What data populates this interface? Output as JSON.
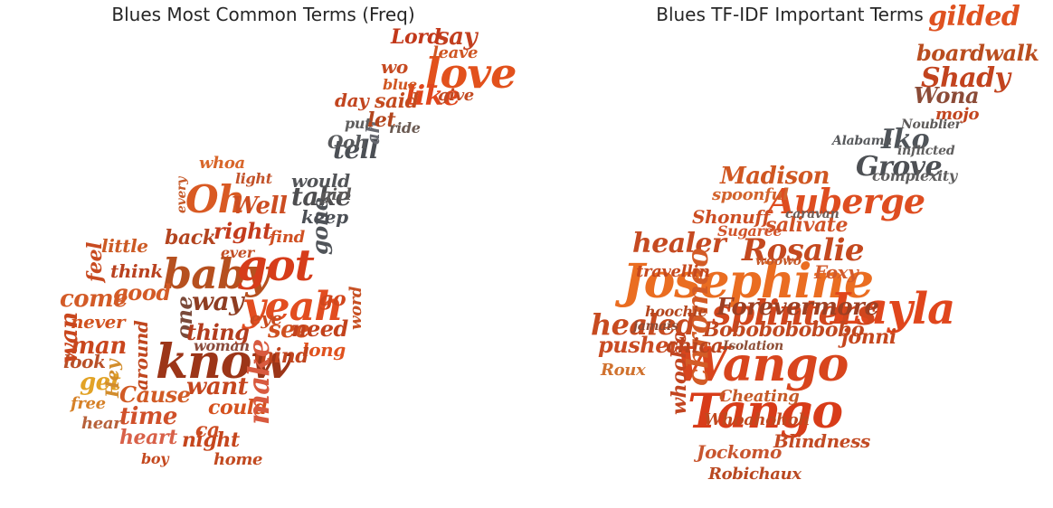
{
  "figure": {
    "panels": [
      {
        "id": "freq",
        "title": "Blues Most Common Terms (Freq)",
        "words": [
          {
            "t": "love",
            "c": "#e2511c"
          },
          {
            "t": "know",
            "c": "#9c3518"
          },
          {
            "t": "baby",
            "c": "#b6501f"
          },
          {
            "t": "got",
            "c": "#d63c1a"
          },
          {
            "t": "yeah",
            "c": "#e24d20"
          },
          {
            "t": "Oh",
            "c": "#d95a23"
          },
          {
            "t": "like",
            "c": "#e0461c"
          },
          {
            "t": "say",
            "c": "#c23f1f"
          },
          {
            "t": "Lord",
            "c": "#c2381a"
          },
          {
            "t": "come",
            "c": "#d35b27"
          },
          {
            "t": "good",
            "c": "#d35a26"
          },
          {
            "t": "way",
            "c": "#8e3d22"
          },
          {
            "t": "one",
            "c": "#7a4a3a"
          },
          {
            "t": "take",
            "c": "#4d4d4f"
          },
          {
            "t": "tell",
            "c": "#4b4f55"
          },
          {
            "t": "Well",
            "c": "#cc4d22"
          },
          {
            "t": "right",
            "c": "#c43b1c"
          },
          {
            "t": "back",
            "c": "#b3441f"
          },
          {
            "t": "feel",
            "c": "#c84a20"
          },
          {
            "t": "little",
            "c": "#cc5a24"
          },
          {
            "t": "think",
            "c": "#b9411f"
          },
          {
            "t": "man",
            "c": "#c9461d"
          },
          {
            "t": "never",
            "c": "#d1521f"
          },
          {
            "t": "get",
            "c": "#e2a326"
          },
          {
            "t": "look",
            "c": "#b95028"
          },
          {
            "t": "thing",
            "c": "#b23c1d"
          },
          {
            "t": "woman",
            "c": "#8a4b3c"
          },
          {
            "t": "see",
            "c": "#cf5020"
          },
          {
            "t": "need",
            "c": "#c2421c"
          },
          {
            "t": "long",
            "c": "#e0521e"
          },
          {
            "t": "mind",
            "c": "#c0441d"
          },
          {
            "t": "want",
            "c": "#c5461e"
          },
          {
            "t": "could",
            "c": "#d5521f"
          },
          {
            "t": "time",
            "c": "#d0502a"
          },
          {
            "t": "heart",
            "c": "#d86149"
          },
          {
            "t": "night",
            "c": "#c5461d"
          },
          {
            "t": "ca",
            "c": "#cc4c22"
          },
          {
            "t": "make",
            "c": "#d85a3f"
          },
          {
            "t": "Cause",
            "c": "#d15b25"
          },
          {
            "t": "around",
            "c": "#c0471f"
          },
          {
            "t": "wan",
            "c": "#c9461d"
          },
          {
            "t": "go",
            "c": "#d1461c"
          },
          {
            "t": "gone",
            "c": "#505459"
          },
          {
            "t": "keep",
            "c": "#4b4f55"
          },
          {
            "t": "would",
            "c": "#525457"
          },
          {
            "t": "Ooh",
            "c": "#56585b"
          },
          {
            "t": "ah",
            "c": "#676970"
          },
          {
            "t": "let",
            "c": "#b3461e"
          },
          {
            "t": "said",
            "c": "#c44b1f"
          },
          {
            "t": "day",
            "c": "#c2451f"
          },
          {
            "t": "wo",
            "c": "#c64a21"
          },
          {
            "t": "blue",
            "c": "#d05722"
          },
          {
            "t": "leave",
            "c": "#cf5623"
          },
          {
            "t": "give",
            "c": "#c24a22"
          },
          {
            "t": "girl",
            "c": "#5d5a59"
          },
          {
            "t": "put",
            "c": "#5f5e5e"
          },
          {
            "t": "ride",
            "c": "#6a5a52"
          },
          {
            "t": "whoa",
            "c": "#d8662a"
          },
          {
            "t": "light",
            "c": "#c25229"
          },
          {
            "t": "every",
            "c": "#c65a2a"
          },
          {
            "t": "find",
            "c": "#d05022"
          },
          {
            "t": "ever",
            "c": "#c24f26"
          },
          {
            "t": "eye",
            "c": "#c84b1f"
          },
          {
            "t": "home",
            "c": "#c24a20"
          },
          {
            "t": "boy",
            "c": "#c4491f"
          },
          {
            "t": "free",
            "c": "#d68128"
          },
          {
            "t": "hear",
            "c": "#b7613a"
          },
          {
            "t": "Hey",
            "c": "#d28d2c"
          },
          {
            "t": "word",
            "c": "#c75124"
          }
        ]
      },
      {
        "id": "tfidf",
        "title": "Blues TF-IDF Important Terms",
        "words": [
          {
            "t": "Josephine",
            "c": "#ea6d21"
          },
          {
            "t": "Layla",
            "c": "#e0461c"
          },
          {
            "t": "Wango",
            "c": "#d8451d"
          },
          {
            "t": "Tango",
            "c": "#d83c19"
          },
          {
            "t": "Rosalie",
            "c": "#c4491f"
          },
          {
            "t": "Auberge",
            "c": "#de4d20"
          },
          {
            "t": "gilded",
            "c": "#df5220"
          },
          {
            "t": "Shady",
            "c": "#c2431e"
          },
          {
            "t": "boardwalk",
            "c": "#b94d1f"
          },
          {
            "t": "Grove",
            "c": "#4d5054"
          },
          {
            "t": "Iko",
            "c": "#4f5459"
          },
          {
            "t": "Wona",
            "c": "#8b4b37"
          },
          {
            "t": "splinters",
            "c": "#d1461d"
          },
          {
            "t": "healed",
            "c": "#c74b20"
          },
          {
            "t": "healer",
            "c": "#c54a21"
          },
          {
            "t": "Forevermore",
            "c": "#9d3f22"
          },
          {
            "t": "Bobobobobobo",
            "c": "#c04820"
          },
          {
            "t": "chromeo",
            "c": "#d35b26"
          },
          {
            "t": "Madison",
            "c": "#d05722"
          },
          {
            "t": "Shonuff",
            "c": "#cc4d22"
          },
          {
            "t": "salivate",
            "c": "#d05226"
          },
          {
            "t": "travellin",
            "c": "#c5481d"
          },
          {
            "t": "Foxy",
            "c": "#d35c2c"
          },
          {
            "t": "pusher",
            "c": "#c94b22"
          },
          {
            "t": "chica",
            "c": "#b9441e"
          },
          {
            "t": "jonni",
            "c": "#c5461d"
          },
          {
            "t": "whooho",
            "c": "#c24520"
          },
          {
            "t": "Jockomo",
            "c": "#c8552e"
          },
          {
            "t": "Blindness",
            "c": "#c24a23"
          },
          {
            "t": "Robichaux",
            "c": "#b94821"
          },
          {
            "t": "Roux",
            "c": "#d0722f"
          },
          {
            "t": "Cheating",
            "c": "#c55a28"
          },
          {
            "t": "Whoahohoh",
            "c": "#c0491f"
          },
          {
            "t": "complexity",
            "c": "#5f5e5e"
          },
          {
            "t": "Alabama",
            "c": "#56585b"
          },
          {
            "t": "caravan",
            "c": "#6b5e58"
          },
          {
            "t": "spoonful",
            "c": "#d2632c"
          },
          {
            "t": "Sugaree",
            "c": "#d1542a"
          },
          {
            "t": "hoochie",
            "c": "#b3461e"
          },
          {
            "t": "jamais",
            "c": "#8e4a33"
          },
          {
            "t": "Isolation",
            "c": "#8d4e36"
          },
          {
            "t": "Noublier",
            "c": "#5d5a59"
          },
          {
            "t": "mojo",
            "c": "#c2451f"
          },
          {
            "t": "inflicted",
            "c": "#5f5e5e"
          },
          {
            "t": "woowo",
            "c": "#c65a2a"
          }
        ]
      }
    ]
  }
}
